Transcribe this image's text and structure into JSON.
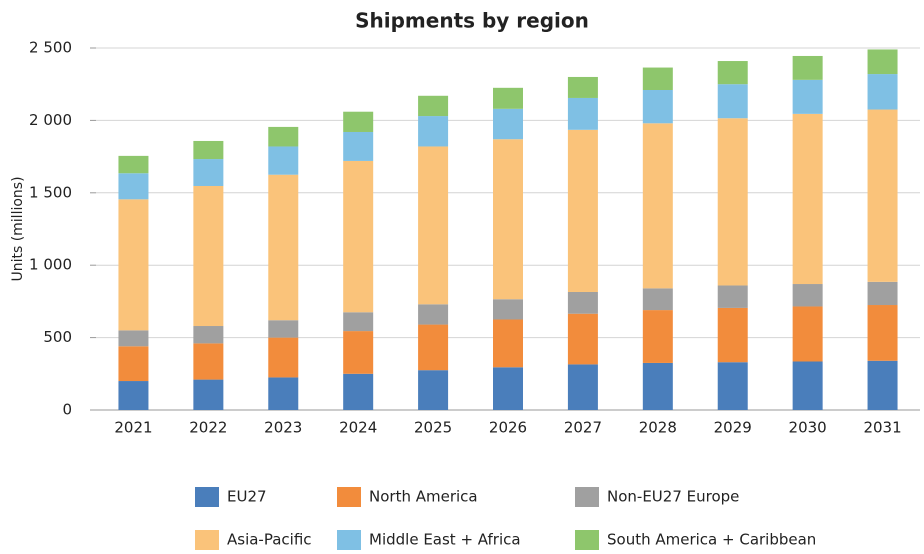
{
  "chart_data": {
    "type": "stacked_bar",
    "title": "Shipments by region",
    "y_label": "Units (millions)",
    "categories": [
      "2021",
      "2022",
      "2023",
      "2024",
      "2025",
      "2026",
      "2027",
      "2028",
      "2029",
      "2030",
      "2031"
    ],
    "series": [
      {
        "name": "EU27",
        "color": "#4a7ebb",
        "values": [
          200,
          210,
          225,
          250,
          275,
          295,
          315,
          325,
          330,
          335,
          340
        ]
      },
      {
        "name": "North America",
        "color": "#f28c3c",
        "values": [
          240,
          250,
          275,
          295,
          315,
          330,
          350,
          365,
          375,
          380,
          385
        ]
      },
      {
        "name": "Non-EU27 Europe",
        "color": "#a0a0a0",
        "values": [
          110,
          120,
          120,
          130,
          140,
          140,
          150,
          150,
          155,
          155,
          160
        ]
      },
      {
        "name": "Asia-Pacific",
        "color": "#fac37a",
        "values": [
          905,
          967,
          1005,
          1045,
          1090,
          1105,
          1120,
          1140,
          1155,
          1175,
          1190
        ]
      },
      {
        "name": "Middle East + Africa",
        "color": "#7fc0e4",
        "values": [
          180,
          186,
          195,
          200,
          210,
          210,
          220,
          230,
          235,
          235,
          245
        ]
      },
      {
        "name": "South America + Caribbean",
        "color": "#8ec66c",
        "values": [
          120,
          125,
          135,
          140,
          140,
          145,
          145,
          155,
          160,
          165,
          170
        ]
      }
    ],
    "ylim": [
      0,
      2500
    ],
    "yticks": [
      0,
      500,
      {
        "value": 1000,
        "label": "1 000"
      },
      {
        "value": 1500,
        "label": "1 500"
      },
      {
        "value": 2000,
        "label": "2 000"
      },
      {
        "value": 2500,
        "label": "2 500"
      }
    ],
    "grid": true
  }
}
